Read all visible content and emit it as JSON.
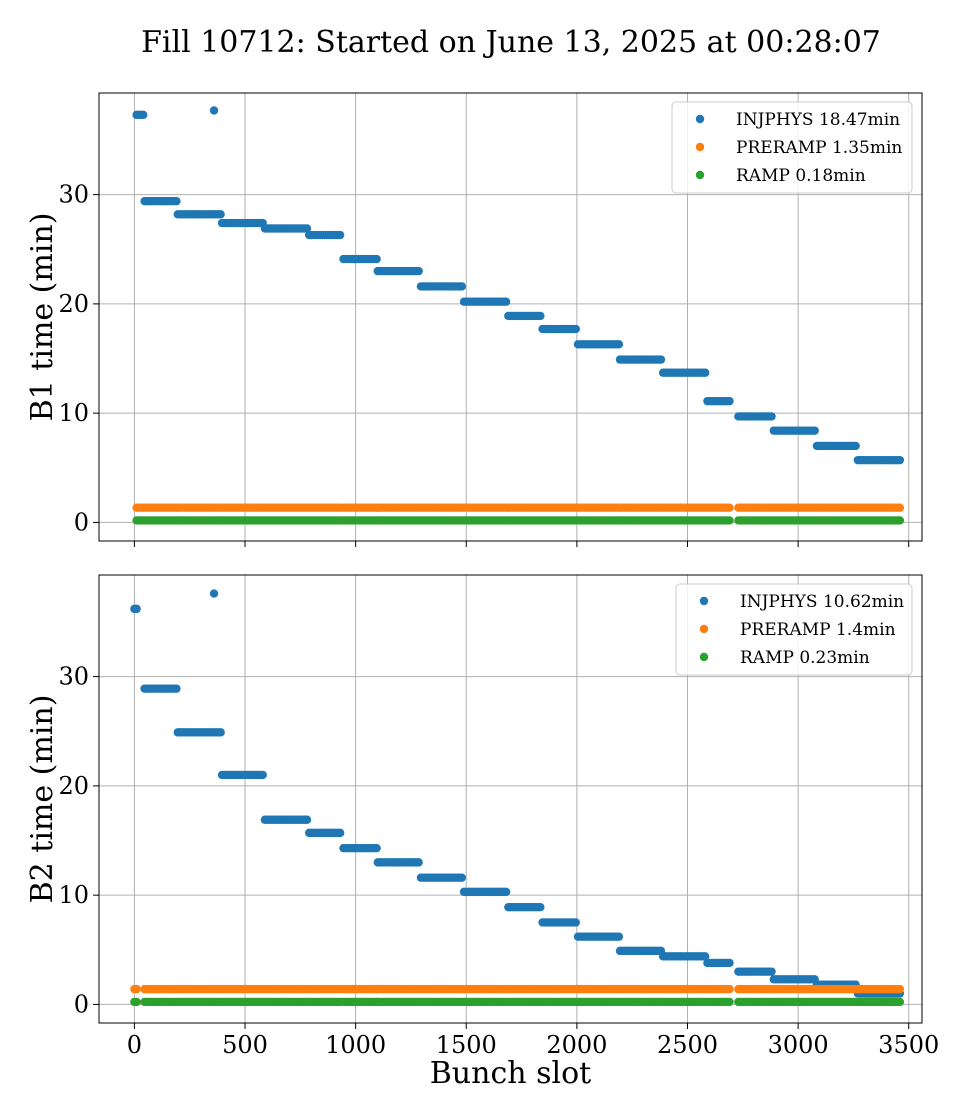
{
  "figure": {
    "title": "Fill 10712: Started on June 13, 2025 at 00:28:07"
  },
  "colors": {
    "INJPHYS": "#1f77b4",
    "PRERAMP": "#ff7f0e",
    "RAMP": "#2ca02c"
  },
  "chart_data": [
    {
      "type": "scatter",
      "xlabel": "",
      "ylabel": "B1 time (min)",
      "xlim": [
        -160,
        3560
      ],
      "ylim": [
        -1.7,
        39.3
      ],
      "xticks": [
        0,
        500,
        1000,
        1500,
        2000,
        2500,
        3000,
        3500
      ],
      "xtick_labels": [
        "",
        "",
        "",
        "",
        "",
        "",
        "",
        ""
      ],
      "yticks": [
        0,
        10,
        20,
        30
      ],
      "ytick_labels": [
        "0",
        "10",
        "20",
        "30"
      ],
      "grid": true,
      "legend": "upper right",
      "series": [
        {
          "name": "INJPHYS 18.47min",
          "color_key": "INJPHYS",
          "segments": [
            [
              10,
              40,
              37.3
            ],
            [
              46,
              190,
              29.4
            ],
            [
              196,
              390,
              28.2
            ],
            [
              396,
              580,
              27.4
            ],
            [
              590,
              780,
              26.9
            ],
            [
              790,
              930,
              26.3
            ],
            [
              945,
              1095,
              24.1
            ],
            [
              1100,
              1285,
              23.0
            ],
            [
              1295,
              1480,
              21.6
            ],
            [
              1490,
              1680,
              20.2
            ],
            [
              1690,
              1835,
              18.9
            ],
            [
              1845,
              1995,
              17.7
            ],
            [
              2005,
              2190,
              16.3
            ],
            [
              2195,
              2380,
              14.9
            ],
            [
              2390,
              2580,
              13.7
            ],
            [
              2590,
              2690,
              11.1
            ],
            [
              2730,
              2880,
              9.7
            ],
            [
              2890,
              3075,
              8.4
            ],
            [
              3085,
              3260,
              7.0
            ],
            [
              3270,
              3460,
              5.7
            ]
          ],
          "points": [
            [
              360,
              37.7
            ]
          ]
        },
        {
          "name": "PRERAMP 1.35min",
          "color_key": "PRERAMP",
          "segments": [
            [
              10,
              40,
              1.35
            ],
            [
              46,
              190,
              1.35
            ],
            [
              196,
              390,
              1.35
            ],
            [
              396,
              580,
              1.35
            ],
            [
              590,
              780,
              1.35
            ],
            [
              790,
              930,
              1.35
            ],
            [
              945,
              1095,
              1.35
            ],
            [
              1100,
              1285,
              1.35
            ],
            [
              1295,
              1480,
              1.35
            ],
            [
              1490,
              1680,
              1.35
            ],
            [
              1690,
              1835,
              1.35
            ],
            [
              1845,
              1995,
              1.35
            ],
            [
              2005,
              2190,
              1.35
            ],
            [
              2195,
              2380,
              1.35
            ],
            [
              2390,
              2580,
              1.35
            ],
            [
              2590,
              2690,
              1.35
            ],
            [
              2730,
              2880,
              1.35
            ],
            [
              2890,
              3075,
              1.35
            ],
            [
              3085,
              3260,
              1.35
            ],
            [
              3270,
              3460,
              1.35
            ]
          ],
          "points": []
        },
        {
          "name": "RAMP 0.18min",
          "color_key": "RAMP",
          "segments": [
            [
              10,
              40,
              0.18
            ],
            [
              46,
              190,
              0.18
            ],
            [
              196,
              390,
              0.18
            ],
            [
              396,
              580,
              0.18
            ],
            [
              590,
              780,
              0.18
            ],
            [
              790,
              930,
              0.18
            ],
            [
              945,
              1095,
              0.18
            ],
            [
              1100,
              1285,
              0.18
            ],
            [
              1295,
              1480,
              0.18
            ],
            [
              1490,
              1680,
              0.18
            ],
            [
              1690,
              1835,
              0.18
            ],
            [
              1845,
              1995,
              0.18
            ],
            [
              2005,
              2190,
              0.18
            ],
            [
              2195,
              2380,
              0.18
            ],
            [
              2390,
              2580,
              0.18
            ],
            [
              2590,
              2690,
              0.18
            ],
            [
              2730,
              2880,
              0.18
            ],
            [
              2890,
              3075,
              0.18
            ],
            [
              3085,
              3260,
              0.18
            ],
            [
              3270,
              3460,
              0.18
            ]
          ],
          "points": []
        }
      ]
    },
    {
      "type": "scatter",
      "xlabel": "Bunch slot",
      "ylabel": "B2 time (min)",
      "xlim": [
        -160,
        3560
      ],
      "ylim": [
        -1.7,
        39.3
      ],
      "xticks": [
        0,
        500,
        1000,
        1500,
        2000,
        2500,
        3000,
        3500
      ],
      "xtick_labels": [
        "0",
        "500",
        "1000",
        "1500",
        "2000",
        "2500",
        "3000",
        "3500"
      ],
      "yticks": [
        0,
        10,
        20,
        30
      ],
      "ytick_labels": [
        "0",
        "10",
        "20",
        "30"
      ],
      "grid": true,
      "legend": "upper right",
      "series": [
        {
          "name": "INJPHYS 10.62min",
          "color_key": "INJPHYS",
          "segments": [
            [
              0,
              10,
              36.2
            ],
            [
              46,
              190,
              28.9
            ],
            [
              196,
              390,
              24.9
            ],
            [
              396,
              580,
              21.0
            ],
            [
              590,
              780,
              16.9
            ],
            [
              790,
              930,
              15.7
            ],
            [
              945,
              1095,
              14.3
            ],
            [
              1100,
              1285,
              13.0
            ],
            [
              1295,
              1480,
              11.6
            ],
            [
              1490,
              1680,
              10.3
            ],
            [
              1690,
              1835,
              8.9
            ],
            [
              1845,
              1995,
              7.5
            ],
            [
              2005,
              2190,
              6.2
            ],
            [
              2195,
              2380,
              4.9
            ],
            [
              2390,
              2580,
              4.4
            ],
            [
              2590,
              2690,
              3.8
            ],
            [
              2730,
              2880,
              3.0
            ],
            [
              2890,
              3075,
              2.3
            ],
            [
              3085,
              3260,
              1.8
            ],
            [
              3270,
              3460,
              1.0
            ]
          ],
          "points": [
            [
              360,
              37.6
            ]
          ]
        },
        {
          "name": "PRERAMP 1.4min",
          "color_key": "PRERAMP",
          "segments": [
            [
              0,
              10,
              1.4
            ],
            [
              46,
              190,
              1.4
            ],
            [
              196,
              390,
              1.4
            ],
            [
              396,
              580,
              1.4
            ],
            [
              590,
              780,
              1.4
            ],
            [
              790,
              930,
              1.4
            ],
            [
              945,
              1095,
              1.4
            ],
            [
              1100,
              1285,
              1.4
            ],
            [
              1295,
              1480,
              1.4
            ],
            [
              1490,
              1680,
              1.4
            ],
            [
              1690,
              1835,
              1.4
            ],
            [
              1845,
              1995,
              1.4
            ],
            [
              2005,
              2190,
              1.4
            ],
            [
              2195,
              2380,
              1.4
            ],
            [
              2390,
              2580,
              1.4
            ],
            [
              2590,
              2690,
              1.4
            ],
            [
              2730,
              2880,
              1.4
            ],
            [
              2890,
              3075,
              1.4
            ],
            [
              3085,
              3260,
              1.4
            ],
            [
              3270,
              3460,
              1.4
            ]
          ],
          "points": []
        },
        {
          "name": "RAMP 0.23min",
          "color_key": "RAMP",
          "segments": [
            [
              0,
              10,
              0.23
            ],
            [
              46,
              190,
              0.23
            ],
            [
              196,
              390,
              0.23
            ],
            [
              396,
              580,
              0.23
            ],
            [
              590,
              780,
              0.23
            ],
            [
              790,
              930,
              0.23
            ],
            [
              945,
              1095,
              0.23
            ],
            [
              1100,
              1285,
              0.23
            ],
            [
              1295,
              1480,
              0.23
            ],
            [
              1490,
              1680,
              0.23
            ],
            [
              1690,
              1835,
              0.23
            ],
            [
              1845,
              1995,
              0.23
            ],
            [
              2005,
              2190,
              0.23
            ],
            [
              2195,
              2380,
              0.23
            ],
            [
              2390,
              2580,
              0.23
            ],
            [
              2590,
              2690,
              0.23
            ],
            [
              2730,
              2880,
              0.23
            ],
            [
              2890,
              3075,
              0.23
            ],
            [
              3085,
              3260,
              0.23
            ],
            [
              3270,
              3460,
              0.23
            ]
          ],
          "points": []
        }
      ]
    }
  ]
}
